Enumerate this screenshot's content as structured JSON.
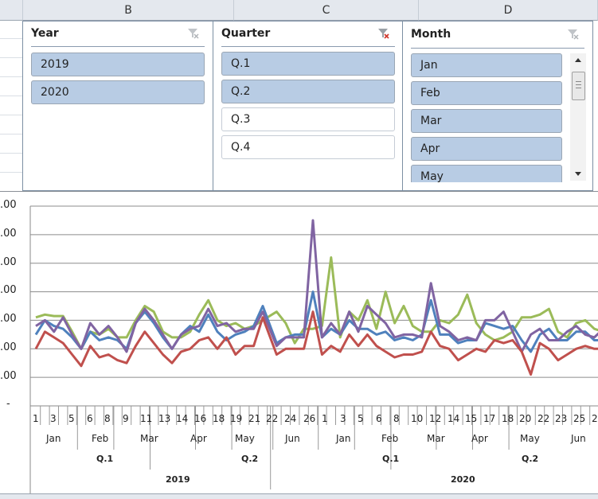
{
  "spreadsheet": {
    "columns": [
      {
        "label": "B"
      },
      {
        "label": "C"
      },
      {
        "label": "D"
      }
    ]
  },
  "slicers": {
    "year": {
      "title": "Year",
      "items": [
        {
          "label": "2019",
          "selected": true
        },
        {
          "label": "2020",
          "selected": true
        }
      ]
    },
    "quarter": {
      "title": "Quarter",
      "items": [
        {
          "label": "Q.1",
          "selected": true
        },
        {
          "label": "Q.2",
          "selected": true
        },
        {
          "label": "Q.3",
          "selected": false
        },
        {
          "label": "Q.4",
          "selected": false
        }
      ]
    },
    "month": {
      "title": "Month",
      "items": [
        {
          "label": "Jan",
          "selected": true
        },
        {
          "label": "Feb",
          "selected": true
        },
        {
          "label": "Mar",
          "selected": true
        },
        {
          "label": "Apr",
          "selected": true
        },
        {
          "label": "May",
          "selected": true
        }
      ]
    }
  },
  "colors": {
    "slicer_selected": "#b8cce4",
    "series_green": "#9bbb59",
    "series_blue": "#4f81bd",
    "series_purple": "#8064a2",
    "series_red": "#c0504d"
  },
  "chart_data": {
    "type": "line",
    "title": "",
    "xlabel": "",
    "ylabel": "",
    "y_tick_labels": [
      ".00",
      ".00",
      ".00",
      ".00",
      ".00",
      ".00",
      ".00",
      "-"
    ],
    "grid": true,
    "legend": "none",
    "x_levels": {
      "weeks_2019": [
        "1",
        "3",
        "5",
        "6",
        "8",
        "9",
        "11",
        "13",
        "14",
        "16",
        "18",
        "19",
        "21",
        "22",
        "24",
        "26"
      ],
      "weeks_2020": [
        "1",
        "3",
        "5",
        "6",
        "8",
        "10",
        "12",
        "14",
        "15",
        "17",
        "18",
        "20",
        "22",
        "23",
        "25",
        "2"
      ],
      "months": [
        "Jan",
        "Feb",
        "Mar",
        "Apr",
        "May",
        "Jun",
        "Jan",
        "Feb",
        "Mar",
        "Apr",
        "May",
        "Jun"
      ],
      "quarters": [
        "Q.1",
        "Q.2",
        "Q.1",
        "Q.2"
      ],
      "years": [
        "2019",
        "2020"
      ]
    },
    "ylim": [
      0,
      7
    ],
    "series": [
      {
        "name": "Green",
        "color": "#9bbb59",
        "values": [
          3.1,
          3.2,
          3.15,
          3.15,
          2.6,
          2.0,
          2.6,
          2.5,
          2.7,
          2.4,
          2.4,
          3.0,
          3.5,
          3.3,
          2.6,
          2.4,
          2.4,
          2.6,
          3.2,
          3.7,
          3.0,
          2.8,
          2.9,
          2.7,
          2.8,
          3.0,
          3.3,
          2.9,
          2.2,
          2.7,
          2.7,
          2.8,
          5.2,
          2.4,
          3.3,
          3.0,
          3.7,
          2.7,
          4.0,
          2.9,
          3.5,
          2.8,
          2.6,
          2.6,
          3.0,
          2.9,
          3.2,
          3.9,
          2.9,
          2.5,
          2.3,
          2.4,
          2.6,
          3.1,
          3.1,
          3.2,
          3.4,
          2.6,
          2.4,
          2.9,
          3.0,
          2.7,
          2.6,
          2.9
        ]
      },
      {
        "name": "Blue",
        "color": "#4f81bd",
        "values": [
          2.5,
          3.0,
          2.8,
          2.7,
          2.4,
          2.0,
          2.6,
          2.3,
          2.4,
          2.3,
          2.0,
          2.9,
          3.3,
          2.9,
          2.4,
          2.0,
          2.5,
          2.8,
          2.6,
          3.2,
          2.6,
          2.3,
          2.5,
          2.6,
          2.8,
          3.5,
          2.2,
          2.4,
          2.5,
          2.5,
          4.0,
          2.4,
          2.7,
          2.5,
          3.0,
          2.7,
          2.7,
          2.5,
          2.6,
          2.3,
          2.4,
          2.3,
          2.5,
          3.7,
          2.5,
          2.5,
          2.2,
          2.3,
          2.3,
          2.9,
          2.8,
          2.7,
          2.8,
          2.3,
          1.9,
          2.5,
          2.7,
          2.3,
          2.3,
          2.6,
          2.6,
          2.3,
          2.3,
          2.7
        ]
      },
      {
        "name": "Purple",
        "color": "#8064a2",
        "values": [
          2.8,
          3.0,
          2.6,
          3.1,
          2.5,
          2.0,
          2.9,
          2.5,
          2.8,
          2.4,
          1.9,
          2.9,
          3.4,
          3.0,
          2.5,
          2.0,
          2.5,
          2.7,
          2.8,
          3.4,
          2.8,
          2.9,
          2.6,
          2.7,
          2.7,
          3.3,
          2.1,
          2.4,
          2.4,
          2.4,
          6.5,
          2.4,
          2.9,
          2.5,
          3.3,
          2.6,
          3.5,
          3.2,
          2.9,
          2.4,
          2.5,
          2.5,
          2.4,
          4.3,
          2.8,
          2.6,
          2.3,
          2.4,
          2.3,
          3.0,
          3.0,
          3.3,
          2.6,
          1.9,
          2.5,
          2.7,
          2.3,
          2.3,
          2.6,
          2.8,
          2.5,
          2.4,
          2.7,
          2.9
        ]
      },
      {
        "name": "Red",
        "color": "#c0504d",
        "values": [
          2.0,
          2.6,
          2.4,
          2.2,
          1.8,
          1.4,
          2.1,
          1.7,
          1.8,
          1.6,
          1.5,
          2.1,
          2.6,
          2.2,
          1.8,
          1.5,
          1.9,
          2.0,
          2.3,
          2.4,
          2.0,
          2.4,
          1.8,
          2.1,
          2.1,
          3.1,
          1.8,
          2.0,
          2.0,
          2.0,
          3.3,
          1.8,
          2.1,
          1.9,
          2.5,
          2.1,
          2.5,
          2.1,
          1.9,
          1.7,
          1.8,
          1.8,
          1.9,
          2.6,
          2.1,
          2.0,
          1.6,
          1.8,
          2.0,
          1.9,
          2.3,
          2.2,
          2.3,
          1.9,
          1.1,
          2.2,
          2.0,
          1.6,
          1.8,
          2.0,
          2.1,
          2.0,
          2.0,
          2.2
        ]
      }
    ]
  }
}
